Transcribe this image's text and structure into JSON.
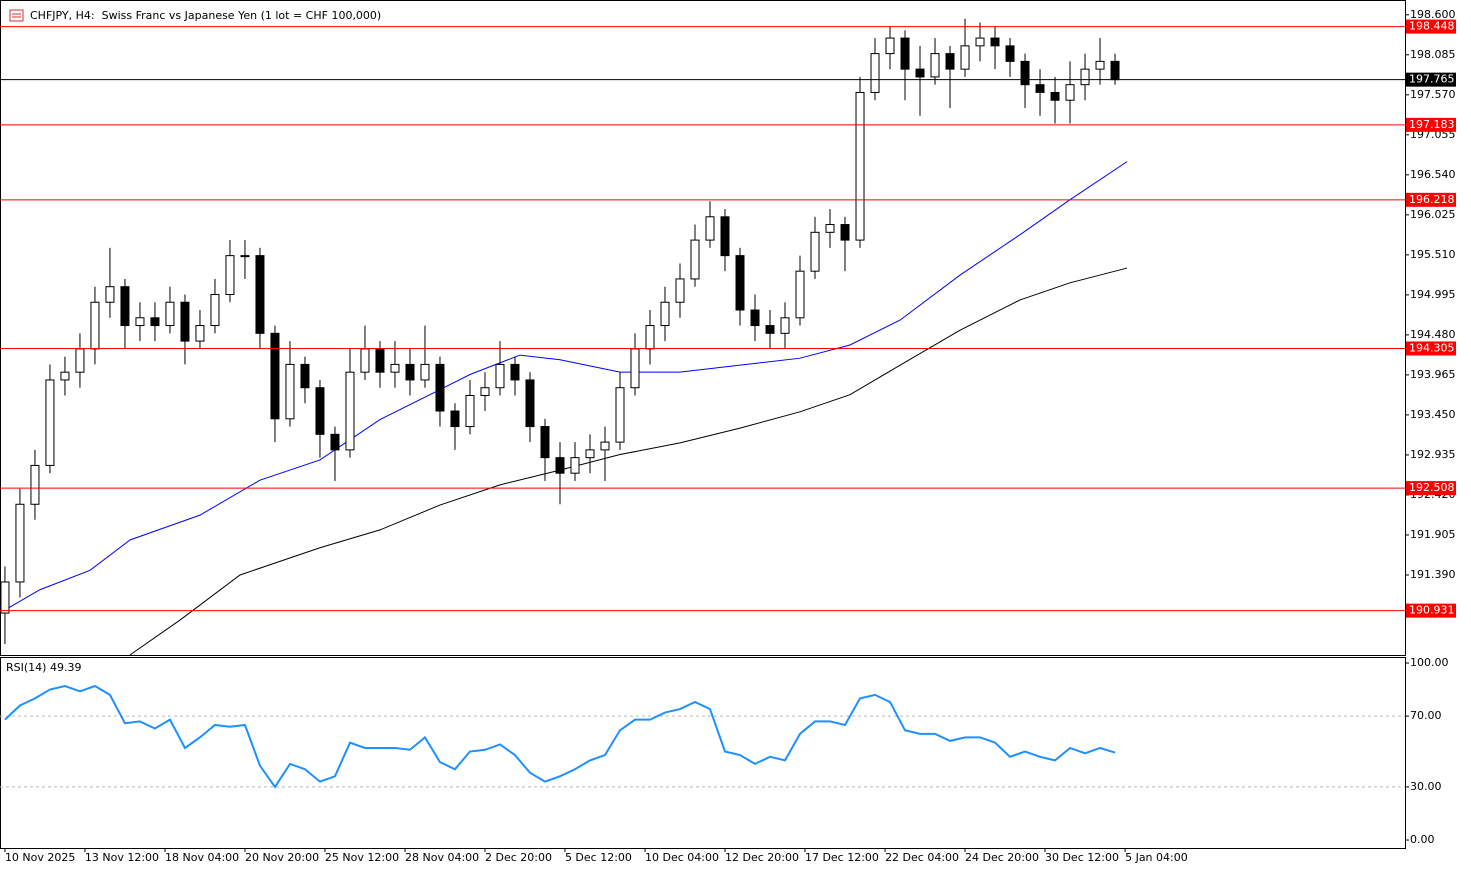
{
  "title": "CHFJPY, H4:  Swiss Franc vs Japanese Yen (1 lot = CHF 100,000)",
  "chart_data": [
    {
      "type": "candlestick",
      "ohlc": [
        [
          190.9,
          191.5,
          190.5,
          191.3
        ],
        [
          191.3,
          192.5,
          191.1,
          192.3
        ],
        [
          192.3,
          193.0,
          192.1,
          192.8
        ],
        [
          192.8,
          194.1,
          192.7,
          193.9
        ],
        [
          193.9,
          194.2,
          193.7,
          194.0
        ],
        [
          194.0,
          194.5,
          193.8,
          194.3
        ],
        [
          194.3,
          195.1,
          194.1,
          194.9
        ],
        [
          194.9,
          195.6,
          194.7,
          195.1
        ],
        [
          195.1,
          195.2,
          194.3,
          194.6
        ],
        [
          194.6,
          194.9,
          194.4,
          194.7
        ],
        [
          194.7,
          194.9,
          194.4,
          194.6
        ],
        [
          194.6,
          195.1,
          194.5,
          194.9
        ],
        [
          194.9,
          195.0,
          194.1,
          194.4
        ],
        [
          194.4,
          194.8,
          194.3,
          194.6
        ],
        [
          194.6,
          195.2,
          194.5,
          195.0
        ],
        [
          195.0,
          195.7,
          194.9,
          195.5
        ],
        [
          195.5,
          195.7,
          195.2,
          195.5
        ],
        [
          195.5,
          195.6,
          194.3,
          194.5
        ],
        [
          194.5,
          194.6,
          193.1,
          193.4
        ],
        [
          193.4,
          194.4,
          193.3,
          194.1
        ],
        [
          194.1,
          194.2,
          193.6,
          193.8
        ],
        [
          193.8,
          193.9,
          192.9,
          193.2
        ],
        [
          193.2,
          193.3,
          192.6,
          193.0
        ],
        [
          193.0,
          194.3,
          192.9,
          194.0
        ],
        [
          194.0,
          194.6,
          193.9,
          194.3
        ],
        [
          194.3,
          194.4,
          193.8,
          194.0
        ],
        [
          194.0,
          194.4,
          193.8,
          194.1
        ],
        [
          194.1,
          194.3,
          193.7,
          193.9
        ],
        [
          193.9,
          194.6,
          193.8,
          194.1
        ],
        [
          194.1,
          194.2,
          193.3,
          193.5
        ],
        [
          193.5,
          193.6,
          193.0,
          193.3
        ],
        [
          193.3,
          193.9,
          193.2,
          193.7
        ],
        [
          193.7,
          194.0,
          193.5,
          193.8
        ],
        [
          193.8,
          194.4,
          193.7,
          194.1
        ],
        [
          194.1,
          194.2,
          193.7,
          193.9
        ],
        [
          193.9,
          194.0,
          193.1,
          193.3
        ],
        [
          193.3,
          193.4,
          192.6,
          192.9
        ],
        [
          192.9,
          193.1,
          192.3,
          192.7
        ],
        [
          192.7,
          193.1,
          192.6,
          192.9
        ],
        [
          192.9,
          193.2,
          192.7,
          193.0
        ],
        [
          193.0,
          193.3,
          192.6,
          193.1
        ],
        [
          193.1,
          194.0,
          193.0,
          193.8
        ],
        [
          193.8,
          194.5,
          193.7,
          194.3
        ],
        [
          194.3,
          194.8,
          194.1,
          194.6
        ],
        [
          194.6,
          195.1,
          194.4,
          194.9
        ],
        [
          194.9,
          195.4,
          194.7,
          195.2
        ],
        [
          195.2,
          195.9,
          195.1,
          195.7
        ],
        [
          195.7,
          196.2,
          195.6,
          196.0
        ],
        [
          196.0,
          196.1,
          195.3,
          195.5
        ],
        [
          195.5,
          195.6,
          194.6,
          194.8
        ],
        [
          194.8,
          195.0,
          194.4,
          194.6
        ],
        [
          194.6,
          194.8,
          194.3,
          194.5
        ],
        [
          194.5,
          194.9,
          194.3,
          194.7
        ],
        [
          194.7,
          195.5,
          194.6,
          195.3
        ],
        [
          195.3,
          196.0,
          195.2,
          195.8
        ],
        [
          195.8,
          196.1,
          195.6,
          195.9
        ],
        [
          195.9,
          196.0,
          195.3,
          195.7
        ],
        [
          195.7,
          197.8,
          195.6,
          197.6
        ],
        [
          197.6,
          198.3,
          197.5,
          198.1
        ],
        [
          198.1,
          198.45,
          197.9,
          198.3
        ],
        [
          198.3,
          198.4,
          197.5,
          197.9
        ],
        [
          197.9,
          198.2,
          197.3,
          197.8
        ],
        [
          197.8,
          198.3,
          197.7,
          198.1
        ],
        [
          198.1,
          198.2,
          197.4,
          197.9
        ],
        [
          197.9,
          198.55,
          197.8,
          198.2
        ],
        [
          198.2,
          198.5,
          198.0,
          198.3
        ],
        [
          198.3,
          198.45,
          197.9,
          198.2
        ],
        [
          198.2,
          198.3,
          197.8,
          198.0
        ],
        [
          198.0,
          198.1,
          197.4,
          197.7
        ],
        [
          197.7,
          197.9,
          197.3,
          197.6
        ],
        [
          197.6,
          197.8,
          197.2,
          197.5
        ],
        [
          197.5,
          198.0,
          197.2,
          197.7
        ],
        [
          197.7,
          198.1,
          197.5,
          197.9
        ],
        [
          197.9,
          198.3,
          197.7,
          198.0
        ],
        [
          198.0,
          198.1,
          197.7,
          197.765
        ]
      ],
      "series": [
        {
          "color": "#0000ff",
          "x": [
            0,
            2.33,
            5.67,
            8.33,
            13,
            17,
            21,
            25,
            28.33,
            31,
            34.33,
            37,
            41,
            45,
            49,
            53,
            56.33,
            59.67,
            63.67,
            67.67,
            71,
            74.8
          ],
          "values": [
            190.94,
            191.2,
            191.45,
            191.84,
            192.16,
            192.61,
            192.87,
            193.39,
            193.71,
            193.97,
            194.22,
            194.16,
            194.0,
            194.0,
            194.09,
            194.18,
            194.35,
            194.67,
            195.25,
            195.77,
            196.22,
            196.71
          ]
        },
        {
          "color": "#000000",
          "x": [
            8.33,
            11.67,
            15.67,
            21,
            25,
            29,
            33,
            37,
            41,
            45,
            49,
            53,
            56.33,
            59.67,
            63.67,
            67.67,
            71,
            74.8
          ],
          "values": [
            190.36,
            190.81,
            191.39,
            191.74,
            191.97,
            192.29,
            192.55,
            192.74,
            192.94,
            193.09,
            193.28,
            193.49,
            193.71,
            194.09,
            194.54,
            194.93,
            195.15,
            195.34
          ]
        }
      ],
      "levels": [
        {
          "value": 198.448,
          "color": "#ff0000"
        },
        {
          "value": 197.765,
          "color": "#000000"
        },
        {
          "value": 197.183,
          "color": "#ff0000"
        },
        {
          "value": 196.218,
          "color": "#ff0000"
        },
        {
          "value": 194.305,
          "color": "#ff0000"
        },
        {
          "value": 192.508,
          "color": "#ff0000"
        },
        {
          "value": 190.931,
          "color": "#ff0000"
        }
      ],
      "xlim": [
        -0.33,
        93.33
      ],
      "ylim": [
        190.36,
        198.79
      ],
      "yticks": [
        {
          "value": 198.6,
          "label": "198.600"
        },
        {
          "value": 198.085,
          "label": "198.085"
        },
        {
          "value": 197.57,
          "label": "197.570"
        },
        197.055,
        {
          "value": 196.54,
          "label": "196.540"
        },
        {
          "value": 196.025,
          "label": "196.025"
        },
        {
          "value": 195.51,
          "label": "195.510"
        },
        194.995,
        {
          "value": 194.48,
          "label": "194.480"
        },
        193.965,
        {
          "value": 193.45,
          "label": "193.450"
        },
        192.935,
        {
          "value": 192.42,
          "label": "192.420"
        },
        191.905,
        {
          "value": 191.39,
          "label": "191.390"
        }
      ]
    },
    {
      "type": "line",
      "label": "RSI(14) 49.39",
      "color": "#1e90ff",
      "values": [
        68,
        76,
        80,
        85,
        87,
        84,
        87,
        82,
        66,
        67,
        63,
        68,
        52,
        58,
        65,
        64,
        65,
        42,
        30,
        43,
        40,
        33,
        36,
        55,
        52,
        52,
        52,
        51,
        58,
        44,
        40,
        50,
        51,
        54,
        48,
        38,
        33,
        36,
        40,
        45,
        48,
        62,
        68,
        68,
        72,
        74,
        78,
        74,
        50,
        48,
        43,
        47,
        45,
        60,
        67,
        67,
        65,
        80,
        82,
        78,
        62,
        60,
        60,
        56,
        58,
        58,
        55,
        47,
        50,
        47,
        45,
        52,
        49,
        52,
        49.39
      ],
      "xlim": [
        -0.33,
        93.33
      ],
      "ylim": [
        -4.5,
        103.4
      ],
      "yticks": [
        {
          "value": 100,
          "label": "100.00"
        },
        {
          "value": 70,
          "label": "70.00"
        },
        {
          "value": 30,
          "label": "30.00"
        },
        {
          "value": 0,
          "label": "0.00"
        }
      ],
      "levels": [
        70,
        30
      ],
      "xticks": [
        {
          "value": 0,
          "label": "10 Nov 2025"
        },
        {
          "value": 5.33,
          "label": "13 Nov 12:00"
        },
        {
          "value": 10.67,
          "label": "18 Nov 04:00"
        },
        {
          "value": 16,
          "label": "20 Nov 20:00"
        },
        {
          "value": 21.33,
          "label": "25 Nov 12:00"
        },
        {
          "value": 26.67,
          "label": "28 Nov 04:00"
        },
        {
          "value": 32,
          "label": "2 Dec 20:00"
        },
        {
          "value": 37.33,
          "label": "5 Dec 12:00"
        },
        {
          "value": 42.67,
          "label": "10 Dec 04:00"
        },
        {
          "value": 48,
          "label": "12 Dec 20:00"
        },
        {
          "value": 53.33,
          "label": "17 Dec 12:00"
        },
        {
          "value": 58.67,
          "label": "22 Dec 04:00"
        },
        {
          "value": 64,
          "label": "24 Dec 20:00"
        },
        {
          "value": 69.33,
          "label": "30 Dec 12:00"
        },
        {
          "value": 74.67,
          "label": "5 Jan 04:00"
        }
      ]
    }
  ]
}
